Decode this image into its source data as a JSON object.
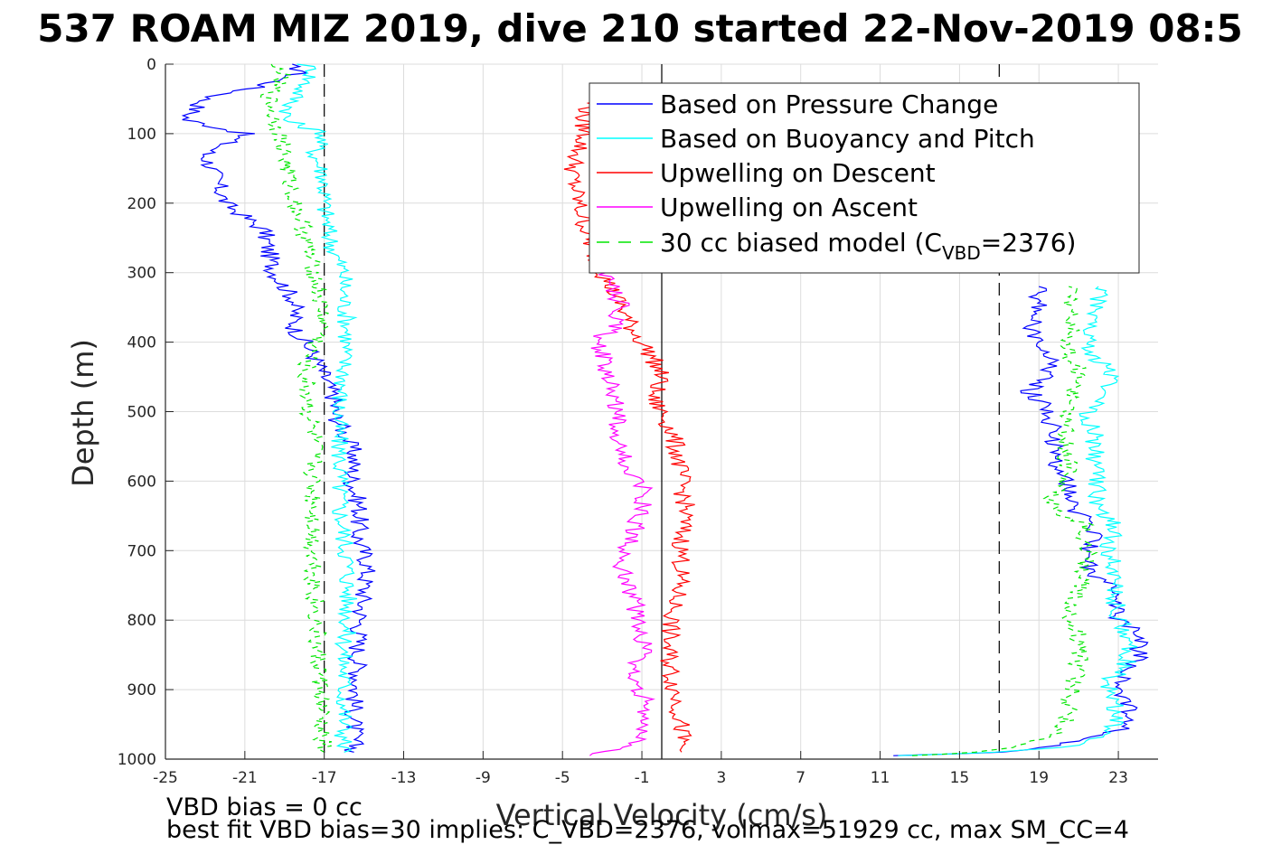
{
  "chart_data": {
    "type": "line",
    "title": "537 ROAM MIZ 2019, dive 210 started 22-Nov-2019 08:5",
    "xlabel": "Vertical Velocity (cm/s)",
    "ylabel": "Depth (m)",
    "xlim": [
      -25,
      25
    ],
    "ylim": [
      0,
      1000
    ],
    "y_reversed": true,
    "grid": true,
    "xticks": [
      -25,
      -21,
      -17,
      -13,
      -9,
      -5,
      -1,
      3,
      7,
      11,
      15,
      19,
      23
    ],
    "yticks": [
      0,
      100,
      200,
      300,
      400,
      500,
      600,
      700,
      800,
      900,
      1000
    ],
    "reference_lines": {
      "solid_x": 0,
      "dashed_x": [
        -17,
        17
      ]
    },
    "legend": {
      "placement": "upper-right inside",
      "model_prefix": "30 cc biased model (C",
      "model_sub": "VBD",
      "model_suffix": "=2376)"
    },
    "series": [
      {
        "name": "Based on Pressure Change",
        "color": "#0000ff",
        "style": "solid",
        "descent": [
          [
            0,
            -19
          ],
          [
            10,
            -18
          ],
          [
            30,
            -20
          ],
          [
            50,
            -23
          ],
          [
            80,
            -24
          ],
          [
            100,
            -21
          ],
          [
            130,
            -23
          ],
          [
            160,
            -22.5
          ],
          [
            200,
            -22
          ],
          [
            240,
            -20
          ],
          [
            270,
            -19.8
          ],
          [
            300,
            -19.5
          ],
          [
            340,
            -18.5
          ],
          [
            380,
            -18.5
          ],
          [
            420,
            -17.5
          ],
          [
            450,
            -17
          ],
          [
            480,
            -16.5
          ],
          [
            500,
            -16.5
          ],
          [
            530,
            -16
          ],
          [
            560,
            -15.5
          ],
          [
            600,
            -15.6
          ],
          [
            640,
            -15.2
          ],
          [
            680,
            -15.3
          ],
          [
            720,
            -14.8
          ],
          [
            760,
            -15
          ],
          [
            800,
            -15.2
          ],
          [
            840,
            -15.3
          ],
          [
            880,
            -15.3
          ],
          [
            920,
            -15.5
          ],
          [
            960,
            -15.5
          ],
          [
            990,
            -15.5
          ]
        ],
        "ascent": [
          [
            995,
            12
          ],
          [
            990,
            17
          ],
          [
            980,
            20
          ],
          [
            965,
            22.5
          ],
          [
            950,
            23.5
          ],
          [
            920,
            23.5
          ],
          [
            890,
            23
          ],
          [
            860,
            24
          ],
          [
            820,
            24
          ],
          [
            800,
            23
          ],
          [
            760,
            23
          ],
          [
            730,
            21.5
          ],
          [
            700,
            21.5
          ],
          [
            660,
            22
          ],
          [
            640,
            20.5
          ],
          [
            610,
            20.5
          ],
          [
            580,
            20
          ],
          [
            540,
            19.8
          ],
          [
            500,
            19.5
          ],
          [
            470,
            18.5
          ],
          [
            440,
            19.5
          ],
          [
            420,
            19.5
          ],
          [
            400,
            19
          ],
          [
            380,
            18.5
          ],
          [
            350,
            19
          ],
          [
            320,
            19
          ]
        ]
      },
      {
        "name": "Based on Buoyancy and Pitch",
        "color": "#00ffff",
        "style": "solid",
        "descent": [
          [
            0,
            -18
          ],
          [
            10,
            -17.5
          ],
          [
            30,
            -18
          ],
          [
            50,
            -18.5
          ],
          [
            80,
            -19
          ],
          [
            100,
            -17
          ],
          [
            130,
            -17.5
          ],
          [
            160,
            -17
          ],
          [
            200,
            -17
          ],
          [
            240,
            -16.8
          ],
          [
            270,
            -16.5
          ],
          [
            300,
            -16
          ],
          [
            340,
            -16
          ],
          [
            380,
            -15.8
          ],
          [
            420,
            -16
          ],
          [
            450,
            -16
          ],
          [
            480,
            -16.2
          ],
          [
            500,
            -16.3
          ],
          [
            530,
            -16.3
          ],
          [
            560,
            -16.2
          ],
          [
            600,
            -16.2
          ],
          [
            640,
            -16.2
          ],
          [
            680,
            -16
          ],
          [
            720,
            -15.8
          ],
          [
            760,
            -15.8
          ],
          [
            800,
            -15.8
          ],
          [
            840,
            -16
          ],
          [
            880,
            -16
          ],
          [
            920,
            -16
          ],
          [
            960,
            -16
          ],
          [
            990,
            -16
          ]
        ],
        "ascent": [
          [
            995,
            12
          ],
          [
            990,
            17
          ],
          [
            980,
            21
          ],
          [
            965,
            22.5
          ],
          [
            950,
            22.8
          ],
          [
            920,
            22.8
          ],
          [
            890,
            22.5
          ],
          [
            860,
            23.5
          ],
          [
            820,
            23.5
          ],
          [
            800,
            23
          ],
          [
            760,
            22.8
          ],
          [
            730,
            22.8
          ],
          [
            700,
            22.5
          ],
          [
            660,
            22.8
          ],
          [
            640,
            22
          ],
          [
            610,
            22
          ],
          [
            580,
            21.8
          ],
          [
            540,
            21.8
          ],
          [
            500,
            21.5
          ],
          [
            470,
            22.5
          ],
          [
            440,
            22.5
          ],
          [
            420,
            21.8
          ],
          [
            400,
            21.5
          ],
          [
            380,
            21.5
          ],
          [
            350,
            22
          ],
          [
            320,
            22
          ]
        ]
      },
      {
        "name": "Upwelling on Descent",
        "color": "#ff0000",
        "style": "solid",
        "descent": [
          [
            50,
            -3.5
          ],
          [
            80,
            -4
          ],
          [
            100,
            -3.8
          ],
          [
            130,
            -4.3
          ],
          [
            160,
            -4.5
          ],
          [
            200,
            -4.2
          ],
          [
            240,
            -3.8
          ],
          [
            270,
            -3.5
          ],
          [
            300,
            -3
          ],
          [
            340,
            -2.2
          ],
          [
            380,
            -1.5
          ],
          [
            420,
            -0.5
          ],
          [
            450,
            0
          ],
          [
            480,
            -0.5
          ],
          [
            500,
            0
          ],
          [
            530,
            0.5
          ],
          [
            560,
            0.8
          ],
          [
            600,
            1
          ],
          [
            640,
            1.2
          ],
          [
            680,
            1
          ],
          [
            720,
            1
          ],
          [
            760,
            0.8
          ],
          [
            800,
            0.5
          ],
          [
            840,
            0.3
          ],
          [
            880,
            0.5
          ],
          [
            920,
            0.8
          ],
          [
            960,
            1
          ],
          [
            990,
            1
          ]
        ]
      },
      {
        "name": "Upwelling on Ascent",
        "color": "#ff00ff",
        "style": "solid",
        "ascent": [
          [
            995,
            -4
          ],
          [
            980,
            -1.5
          ],
          [
            960,
            -1
          ],
          [
            920,
            -0.8
          ],
          [
            880,
            -1.5
          ],
          [
            840,
            -0.8
          ],
          [
            800,
            -1.2
          ],
          [
            760,
            -1.5
          ],
          [
            720,
            -2
          ],
          [
            680,
            -1.5
          ],
          [
            640,
            -1
          ],
          [
            610,
            -1
          ],
          [
            580,
            -1.8
          ],
          [
            540,
            -2.2
          ],
          [
            500,
            -2.2
          ],
          [
            470,
            -2.5
          ],
          [
            440,
            -3
          ],
          [
            420,
            -3
          ],
          [
            400,
            -3.3
          ],
          [
            380,
            -2.5
          ],
          [
            350,
            -2
          ],
          [
            320,
            -2.5
          ],
          [
            300,
            -2.8
          ]
        ]
      },
      {
        "name": "30 cc biased model (C_VBD=2376)",
        "color": "#00e600",
        "style": "dashed",
        "descent": [
          [
            0,
            -20
          ],
          [
            10,
            -19
          ],
          [
            30,
            -19.5
          ],
          [
            50,
            -19.8
          ],
          [
            80,
            -19.5
          ],
          [
            100,
            -19.2
          ],
          [
            130,
            -19
          ],
          [
            160,
            -18.8
          ],
          [
            200,
            -18.5
          ],
          [
            240,
            -18
          ],
          [
            270,
            -17.8
          ],
          [
            300,
            -17.5
          ],
          [
            340,
            -17.2
          ],
          [
            380,
            -17
          ],
          [
            420,
            -17.8
          ],
          [
            450,
            -18
          ],
          [
            480,
            -17.8
          ],
          [
            500,
            -17.8
          ],
          [
            530,
            -17.6
          ],
          [
            560,
            -17.5
          ],
          [
            600,
            -17.6
          ],
          [
            640,
            -17.5
          ],
          [
            680,
            -17.6
          ],
          [
            720,
            -17.5
          ],
          [
            760,
            -17.5
          ],
          [
            800,
            -17.4
          ],
          [
            840,
            -17.4
          ],
          [
            880,
            -17.2
          ],
          [
            920,
            -17.2
          ],
          [
            960,
            -17.2
          ],
          [
            990,
            -17
          ]
        ],
        "ascent": [
          [
            995,
            13
          ],
          [
            990,
            16
          ],
          [
            980,
            18
          ],
          [
            965,
            19.5
          ],
          [
            950,
            20.3
          ],
          [
            920,
            20.5
          ],
          [
            890,
            20.8
          ],
          [
            860,
            21
          ],
          [
            820,
            21
          ],
          [
            800,
            20.5
          ],
          [
            760,
            21
          ],
          [
            730,
            21.2
          ],
          [
            700,
            21.5
          ],
          [
            660,
            21.2
          ],
          [
            640,
            19.5
          ],
          [
            610,
            20
          ],
          [
            580,
            20.5
          ],
          [
            540,
            20.3
          ],
          [
            500,
            20.5
          ],
          [
            470,
            20.8
          ],
          [
            440,
            21
          ],
          [
            420,
            20.5
          ],
          [
            400,
            20.5
          ],
          [
            380,
            20.8
          ],
          [
            350,
            20.5
          ],
          [
            320,
            20.5
          ]
        ]
      }
    ],
    "notes": [
      "VBD bias = 0 cc",
      "best fit VBD bias=30 implies: C_VBD=2376, volmax=51929 cc, max SM_CC=4"
    ]
  },
  "colors": {
    "axis": "#262626",
    "grid": "#dcdcdc"
  }
}
